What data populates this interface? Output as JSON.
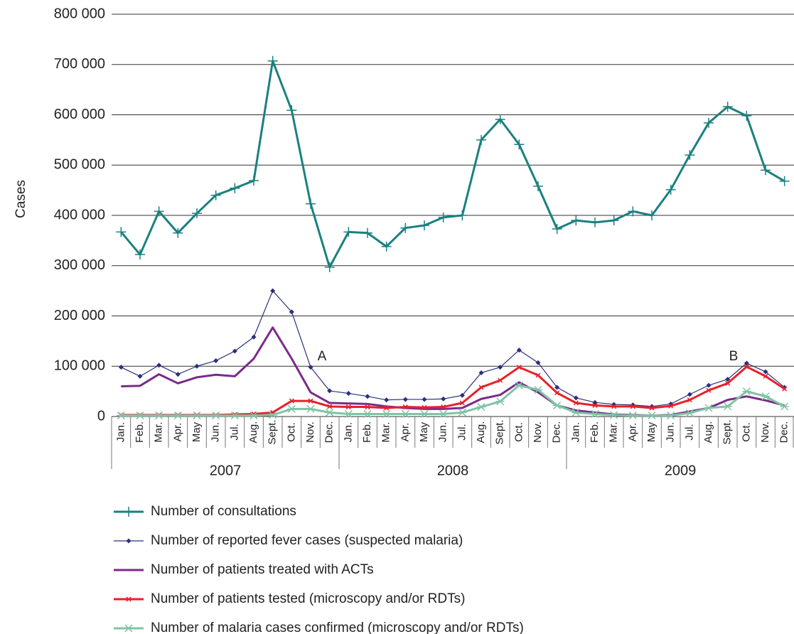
{
  "chart_data": {
    "type": "line",
    "y_label": "Cases",
    "categories": [
      "Jan.",
      "Feb.",
      "Mar.",
      "Apr.",
      "May",
      "Jun.",
      "Jul.",
      "Aug.",
      "Sept.",
      "Oct.",
      "Nov.",
      "Dec.",
      "Jan.",
      "Feb.",
      "Mar.",
      "Apr.",
      "May",
      "Jun.",
      "Jul.",
      "Aug.",
      "Sept.",
      "Oct.",
      "Nov.",
      "Dec.",
      "Jan.",
      "Feb.",
      "Mar.",
      "Apr.",
      "May",
      "Jun.",
      "Jul.",
      "Aug.",
      "Sept.",
      "Oct.",
      "Nov.",
      "Dec."
    ],
    "years": [
      "2007",
      "2008",
      "2009"
    ],
    "ylim": [
      0,
      800000
    ],
    "yticks": [
      0,
      {
        "value": 100000,
        "label": "100 000"
      },
      {
        "value": 200000,
        "label": "200 000"
      },
      {
        "value": 300000,
        "label": "300 000"
      },
      {
        "value": 400000,
        "label": "400 000"
      },
      {
        "value": 500000,
        "label": "500 000"
      },
      {
        "value": 600000,
        "label": "600 000"
      },
      {
        "value": 700000,
        "label": "700 000"
      },
      {
        "value": 800000,
        "label": "800 000"
      }
    ],
    "grid": true,
    "annotations": [
      "A",
      "B"
    ],
    "series": [
      {
        "name": "Number of consultations",
        "color": "#1a8080",
        "marker": "plus",
        "values": [
          367000,
          322000,
          408000,
          365000,
          404000,
          440000,
          454000,
          469000,
          707000,
          609000,
          423000,
          297000,
          367000,
          365000,
          338000,
          375000,
          380000,
          396000,
          400000,
          550000,
          591000,
          541000,
          458000,
          373000,
          390000,
          386000,
          390000,
          408000,
          400000,
          451000,
          520000,
          584000,
          616000,
          598000,
          490000,
          468000
        ]
      },
      {
        "name": "Number of reported fever cases (suspected malaria)",
        "color": "#2b2f7a",
        "marker": "diamond",
        "values": [
          98000,
          80000,
          102000,
          84000,
          100000,
          111000,
          130000,
          158000,
          250000,
          208000,
          98000,
          51000,
          46000,
          40000,
          33000,
          34000,
          34000,
          35000,
          42000,
          87000,
          98000,
          132000,
          107000,
          58000,
          37000,
          28000,
          24000,
          23000,
          20000,
          25000,
          44000,
          62000,
          74000,
          106000,
          89000,
          58000
        ]
      },
      {
        "name": "Number of patients treated with ACTs",
        "color": "#7b2a8a",
        "marker": "none",
        "values": [
          60000,
          61000,
          84000,
          66000,
          78000,
          83000,
          80000,
          115000,
          177000,
          115000,
          48000,
          27000,
          26000,
          25000,
          20000,
          17000,
          15000,
          15000,
          17000,
          35000,
          43000,
          68000,
          48000,
          22000,
          12000,
          8000,
          4000,
          3000,
          2000,
          3000,
          10000,
          17000,
          33000,
          40000,
          32000,
          22000
        ]
      },
      {
        "name": "Number of patients tested (microscopy and/or RDTs)",
        "color": "#e8202a",
        "marker": "cross",
        "values": [
          3000,
          3000,
          3000,
          3000,
          3000,
          3000,
          4000,
          5000,
          8000,
          31000,
          31000,
          20000,
          19000,
          19000,
          17000,
          19000,
          18000,
          19000,
          27000,
          58000,
          72000,
          98000,
          82000,
          47000,
          27000,
          22000,
          20000,
          20000,
          17000,
          21000,
          33000,
          52000,
          66000,
          99000,
          80000,
          55000
        ]
      },
      {
        "name": "Number of malaria cases confirmed (microscopy and/or RDTs)",
        "color": "#7fc4a4",
        "marker": "star",
        "values": [
          2000,
          2000,
          2000,
          2000,
          2000,
          2000,
          2000,
          2000,
          3000,
          15000,
          15000,
          8000,
          5000,
          5000,
          5000,
          5000,
          5000,
          5000,
          8000,
          19000,
          30000,
          62000,
          53000,
          22000,
          8000,
          5000,
          3000,
          2000,
          2000,
          2000,
          7000,
          17000,
          20000,
          50000,
          40000,
          20000
        ]
      }
    ]
  }
}
